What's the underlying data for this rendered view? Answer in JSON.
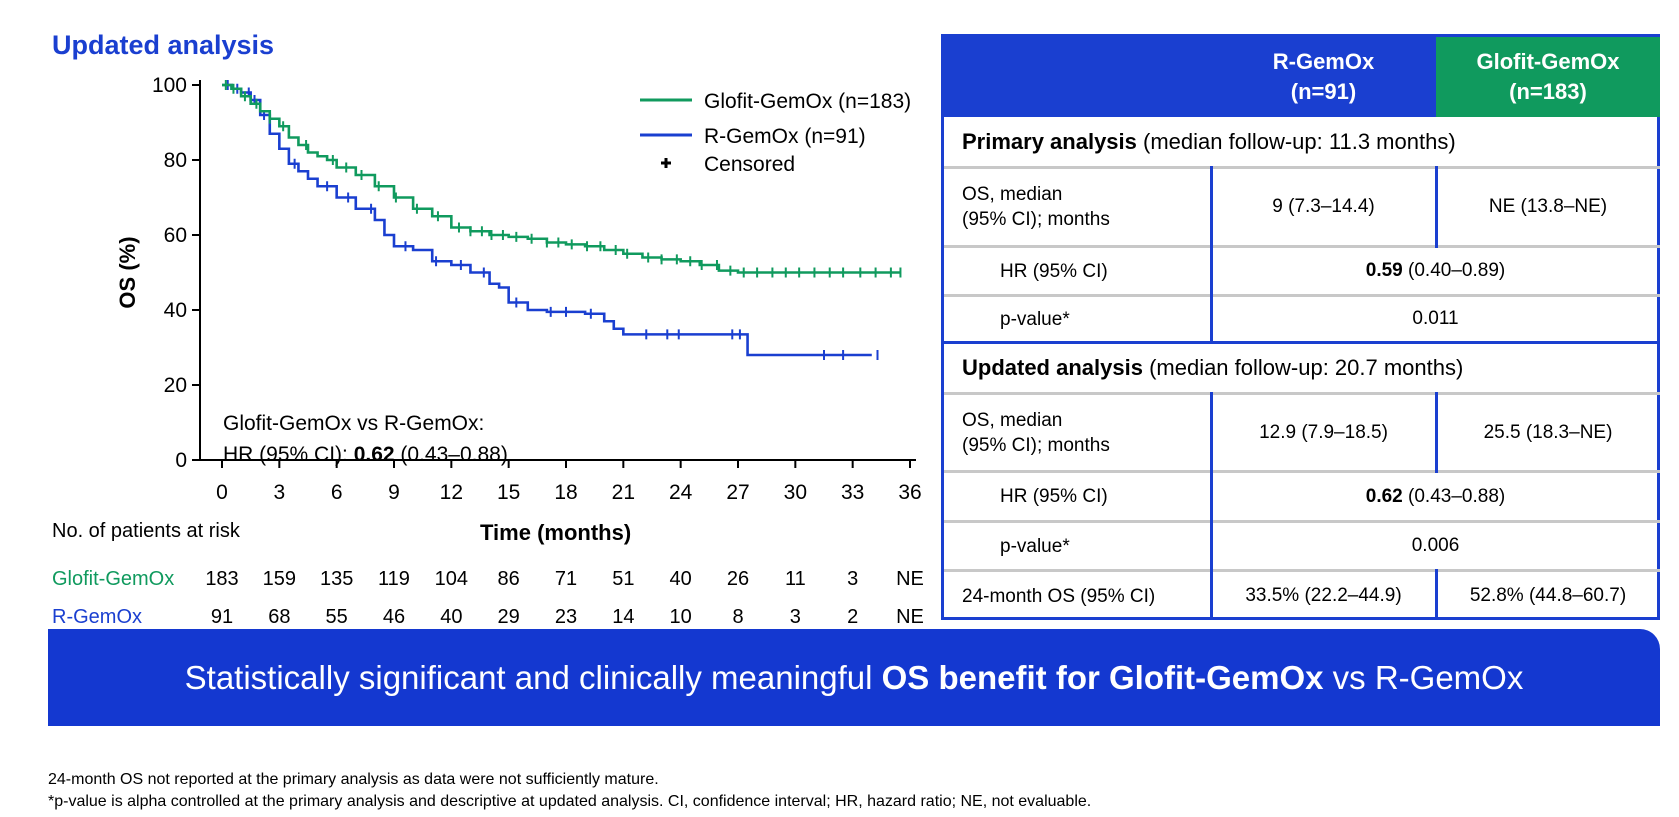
{
  "title": "Updated analysis",
  "colors": {
    "glofit": "#109a5e",
    "rgemox": "#1a3fd0",
    "banner": "#1438d0"
  },
  "chart_data": {
    "type": "line",
    "ylabel": "OS (%)",
    "xlabel": "Time (months)",
    "xlim": [
      0,
      36
    ],
    "ylim": [
      0,
      100
    ],
    "xticks": [
      0,
      3,
      6,
      9,
      12,
      15,
      18,
      21,
      24,
      27,
      30,
      33,
      36
    ],
    "yticks": [
      0,
      20,
      40,
      60,
      80,
      100
    ],
    "legend": [
      {
        "label": "Glofit-GemOx (n=183)",
        "kind": "line",
        "color": "#109a5e"
      },
      {
        "label": "R-GemOx (n=91)",
        "kind": "line",
        "color": "#1a3fd0"
      },
      {
        "label": "Censored",
        "kind": "marker",
        "color": "#000000"
      }
    ],
    "annotation": {
      "line1": "Glofit-GemOx vs R-GemOx:",
      "line2_prefix": "HR (95% CI): ",
      "line2_bold": "0.62",
      "line2_suffix": " (0.43–0.88)"
    },
    "series": [
      {
        "name": "Glofit-GemOx (n=183)",
        "color": "#109a5e",
        "x": [
          0,
          0.5,
          1,
          1.5,
          2,
          2.5,
          3,
          3.5,
          4,
          4.5,
          5,
          5.5,
          6,
          7,
          8,
          9,
          10,
          11,
          12,
          13,
          14,
          15,
          16,
          17,
          18,
          19,
          20,
          21,
          22,
          23,
          24,
          25,
          26,
          27,
          28,
          30,
          32,
          34,
          35.5
        ],
        "y": [
          100,
          99,
          97,
          95,
          93,
          91,
          89,
          86,
          84,
          82,
          81,
          80,
          78,
          76,
          73,
          70,
          67,
          65,
          62,
          61,
          60,
          59.5,
          59,
          58,
          57.5,
          57,
          56,
          55,
          54,
          53.5,
          53,
          52,
          50.5,
          50,
          50,
          50,
          50,
          50,
          50
        ],
        "censored_x": [
          0.2,
          0.6,
          1.2,
          1.8,
          2.5,
          3.2,
          4.4,
          5.8,
          6.5,
          7.3,
          8.2,
          9.1,
          10.2,
          11.3,
          12.4,
          13.0,
          13.6,
          14.1,
          14.7,
          15.4,
          16.2,
          17.0,
          17.6,
          18.3,
          19.1,
          19.8,
          20.6,
          21.2,
          22.3,
          23.0,
          23.8,
          24.5,
          25.1,
          25.9,
          26.6,
          27.3,
          28.0,
          28.8,
          29.5,
          30.2,
          31.0,
          31.8,
          32.5,
          33.4,
          34.2,
          35.0,
          35.5
        ]
      },
      {
        "name": "R-GemOx (n=91)",
        "color": "#1a3fd0",
        "x": [
          0,
          0.5,
          1,
          1.5,
          2,
          2.5,
          3,
          3.5,
          4,
          4.5,
          5,
          6,
          7,
          8,
          8.5,
          9,
          10,
          11,
          12,
          13,
          14,
          14.5,
          15,
          16,
          17,
          19,
          20,
          20.5,
          21,
          22,
          24,
          26,
          27,
          27.5,
          28,
          30,
          32,
          34
        ],
        "y": [
          100,
          99,
          98,
          96,
          92,
          87,
          83,
          79,
          77,
          75,
          73,
          70,
          67,
          64,
          60,
          57,
          56,
          53,
          52,
          50,
          47,
          46,
          42,
          40,
          39.5,
          39,
          37,
          35,
          33.5,
          33.5,
          33.5,
          33.5,
          33.5,
          28,
          28,
          28,
          28,
          28
        ],
        "censored_x": [
          0.3,
          0.8,
          1.4,
          1.7,
          2.2,
          3.8,
          5.5,
          6.6,
          7.8,
          9.6,
          11.2,
          12.5,
          13.7,
          15.4,
          17.2,
          18.0,
          19.3,
          22.2,
          23.3,
          23.9,
          26.7,
          27.1,
          31.5,
          32.5,
          34.3
        ]
      }
    ],
    "risk_table": {
      "header": "No. of patients at risk",
      "rows": [
        {
          "label": "Glofit-GemOx",
          "color": "#109a5e",
          "values": [
            "183",
            "159",
            "135",
            "119",
            "104",
            "86",
            "71",
            "51",
            "40",
            "26",
            "11",
            "3",
            "NE"
          ]
        },
        {
          "label": "R-GemOx",
          "color": "#1a3fd0",
          "values": [
            "91",
            "68",
            "55",
            "46",
            "40",
            "29",
            "23",
            "14",
            "10",
            "8",
            "3",
            "2",
            "NE"
          ]
        }
      ]
    }
  },
  "table": {
    "col1": "R-GemOx\n(n=91)",
    "col2": "Glofit-GemOx\n(n=183)",
    "primary": {
      "heading_bold": "Primary analysis",
      "heading_rest": " (median follow-up: 11.3 months)",
      "os_label": "OS, median\n(95% CI); months",
      "os_r": "9 (7.3–14.4)",
      "os_g": "NE (13.8–NE)",
      "hr_label": "HR (95% CI)",
      "hr_bold": "0.59",
      "hr_rest": " (0.40–0.89)",
      "p_label": "p-value*",
      "p_value": "0.011"
    },
    "updated": {
      "heading_bold": "Updated analysis",
      "heading_rest": " (median follow-up: 20.7 months)",
      "os_label": "OS, median\n(95% CI); months",
      "os_r": "12.9 (7.9–18.5)",
      "os_g": "25.5 (18.3–NE)",
      "hr_label": "HR (95% CI)",
      "hr_bold": "0.62",
      "hr_rest": " (0.43–0.88)",
      "p_label": "p-value*",
      "p_value": "0.006",
      "os24_label": "24-month OS (95% CI)",
      "os24_r": "33.5% (22.2–44.9)",
      "os24_g": "52.8% (44.8–60.7)"
    }
  },
  "banner": {
    "prefix": "Statistically significant and clinically meaningful ",
    "bold": "OS benefit for Glofit-GemOx",
    "suffix": " vs R-GemOx"
  },
  "footnotes": {
    "line1": "24-month OS not reported at the primary analysis as data were not sufficiently mature.",
    "line2": "*p-value is alpha controlled at the primary analysis and descriptive at updated analysis. CI, confidence interval; HR, hazard ratio; NE, not evaluable."
  }
}
